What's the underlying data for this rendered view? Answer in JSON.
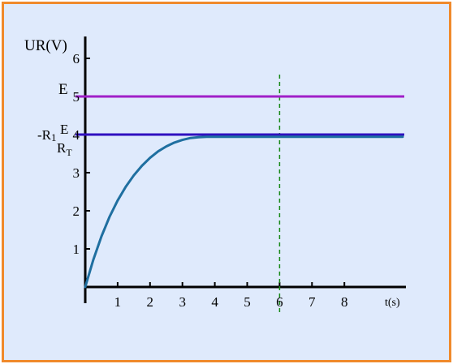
{
  "chart_data": {
    "type": "line",
    "ylabel": "UR(V)",
    "xlabel": "t(s)",
    "xlim": [
      0,
      9.8
    ],
    "ylim": [
      0,
      6.3
    ],
    "x_ticks": [
      1,
      2,
      3,
      4,
      5,
      6,
      7,
      8
    ],
    "y_ticks": [
      1,
      2,
      3,
      4,
      5,
      6
    ],
    "grid": false,
    "series": [
      {
        "color": "#1f6fa0",
        "x": [
          0,
          0.25,
          0.5,
          0.75,
          1.0,
          1.25,
          1.5,
          1.75,
          2.0,
          2.25,
          2.5,
          2.75,
          3.0,
          3.25,
          3.5,
          3.75,
          4.0,
          5.0,
          6.0,
          7.0,
          8.0,
          9.8
        ],
        "y": [
          0,
          0.72,
          1.33,
          1.84,
          2.27,
          2.63,
          2.93,
          3.18,
          3.39,
          3.56,
          3.69,
          3.79,
          3.86,
          3.91,
          3.93,
          3.94,
          3.94,
          3.94,
          3.94,
          3.94,
          3.94,
          3.94
        ]
      }
    ],
    "reference_lines": [
      {
        "label": "E",
        "value": 5.0,
        "color": "#a020c8"
      },
      {
        "label_prefix": "-R",
        "label_sub": "1",
        "label_num": "E",
        "label_den": "R",
        "label_den_sub": "T",
        "value": 4.0,
        "color": "#3010c0"
      }
    ],
    "vertical_marker": {
      "value": 6.0,
      "color": "#1a8a1a",
      "style": "dashed"
    }
  }
}
